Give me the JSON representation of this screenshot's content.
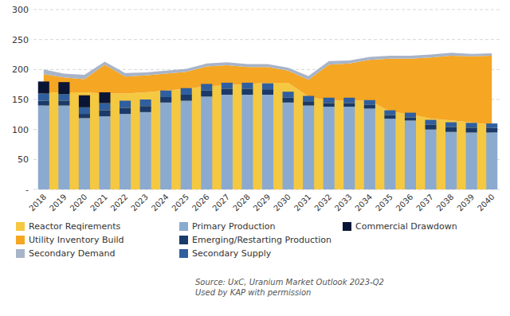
{
  "chart_data": {
    "type": "bar",
    "stacked": true,
    "grid": true,
    "legend": "bottom",
    "categories": [
      "2018",
      "2019",
      "2020",
      "2021",
      "2022",
      "2023",
      "2024",
      "2025",
      "2026",
      "2027",
      "2028",
      "2029",
      "2030",
      "2031",
      "2032",
      "2033",
      "2034",
      "2035",
      "2036",
      "2037",
      "2038",
      "2039",
      "2040"
    ],
    "series": [
      {
        "name": "Reactor Reqirements",
        "type": "area",
        "color": "#F5C842",
        "values": [
          162,
          162,
          162,
          160,
          160,
          162,
          165,
          168,
          172,
          174,
          176,
          178,
          178,
          155,
          148,
          148,
          148,
          130,
          125,
          118,
          115,
          112,
          108
        ]
      },
      {
        "name": "Utility Inventory Build",
        "type": "area",
        "color": "#F5A623",
        "values": [
          30,
          25,
          22,
          48,
          28,
          28,
          28,
          28,
          33,
          33,
          28,
          26,
          20,
          28,
          60,
          62,
          68,
          88,
          93,
          102,
          108,
          110,
          115
        ]
      },
      {
        "name": "Secondary Demand",
        "type": "area",
        "color": "#A8B4C8",
        "values": [
          8,
          6,
          7,
          5,
          6,
          5,
          5,
          5,
          5,
          5,
          5,
          5,
          5,
          6,
          6,
          5,
          5,
          5,
          5,
          5,
          5,
          4,
          4
        ]
      },
      {
        "name": "Primary Production",
        "type": "bar",
        "color": "#8BAAD0",
        "values": [
          140,
          140,
          119,
          122,
          126,
          129,
          145,
          148,
          155,
          158,
          158,
          158,
          145,
          140,
          138,
          138,
          135,
          118,
          115,
          100,
          96,
          95,
          95
        ]
      },
      {
        "name": "Emerging/Restarting Production",
        "type": "bar",
        "color": "#1A3A6B",
        "values": [
          8,
          8,
          7,
          10,
          10,
          10,
          9,
          10,
          10,
          10,
          10,
          9,
          8,
          7,
          6,
          6,
          6,
          6,
          5,
          8,
          8,
          8,
          8
        ]
      },
      {
        "name": "Secondary Supply",
        "type": "bar",
        "color": "#2F5FA0",
        "values": [
          12,
          11,
          11,
          12,
          12,
          11,
          11,
          11,
          11,
          10,
          10,
          10,
          10,
          9,
          9,
          9,
          8,
          8,
          8,
          8,
          8,
          8,
          7
        ]
      },
      {
        "name": "Commercial Drawdown",
        "type": "bar",
        "color": "#0A1535",
        "values": [
          20,
          20,
          20,
          18,
          0,
          0,
          0,
          0,
          0,
          0,
          0,
          0,
          0,
          0,
          0,
          0,
          0,
          0,
          0,
          0,
          0,
          0,
          0
        ]
      }
    ],
    "ylim": [
      0,
      300
    ],
    "yticks": [
      {
        "value": 0,
        "label": "-"
      },
      50,
      100,
      150,
      200,
      250,
      300
    ],
    "annotations": [
      "Source: UxC, Uranium Market Outlook 2023-Q2\nUsed by KAP with permission"
    ]
  }
}
